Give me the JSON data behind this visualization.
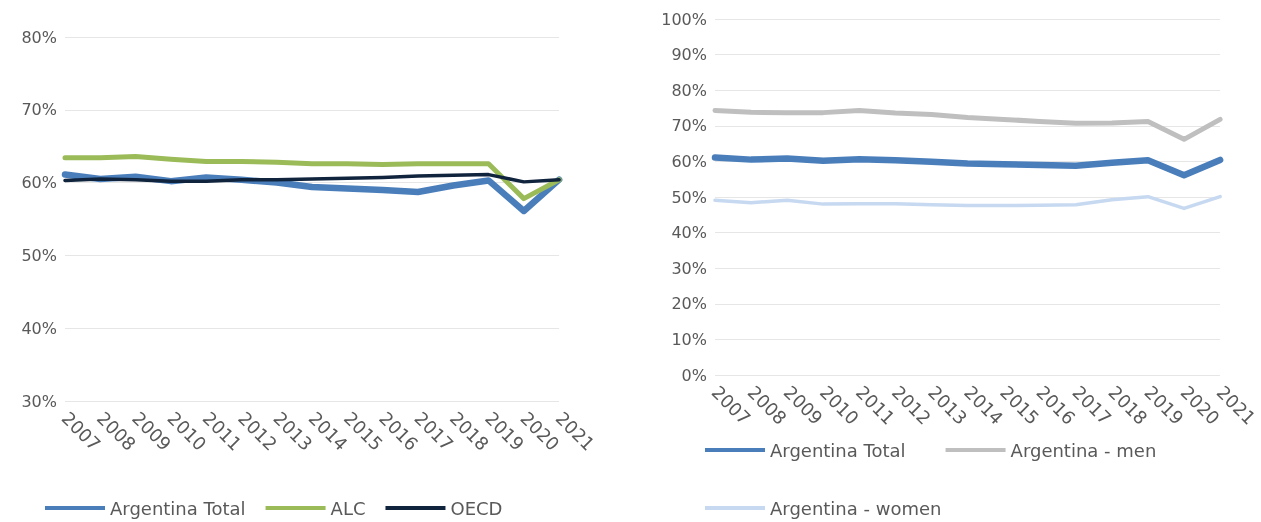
{
  "chart_data": [
    {
      "type": "line",
      "categories": [
        "2007",
        "2008",
        "2009",
        "2010",
        "2011",
        "2012",
        "2013",
        "2014",
        "2015",
        "2016",
        "2017",
        "2018",
        "2019",
        "2020",
        "2021"
      ],
      "ylim": [
        30,
        80
      ],
      "yticks": [
        {
          "value": 30,
          "label": "30%"
        },
        {
          "value": 40,
          "label": "40%"
        },
        {
          "value": 50,
          "label": "50%"
        },
        {
          "value": 60,
          "label": "60%"
        },
        {
          "value": 70,
          "label": "70%"
        },
        {
          "value": 80,
          "label": "80%"
        }
      ],
      "grid": "y",
      "legend": "bottom",
      "marker": "none",
      "line_style": "solid",
      "series": [
        {
          "name": "Argentina Total",
          "color": "#4a7ebb",
          "values": [
            61.1,
            60.5,
            60.8,
            60.2,
            60.7,
            60.4,
            60.0,
            59.4,
            59.2,
            59.0,
            58.7,
            59.6,
            60.3,
            56.1,
            60.4
          ]
        },
        {
          "name": "ALC",
          "color": "#9bbb59",
          "values": [
            63.4,
            63.4,
            63.6,
            63.2,
            62.9,
            62.9,
            62.8,
            62.6,
            62.6,
            62.5,
            62.6,
            62.6,
            62.6,
            57.8,
            60.4
          ]
        },
        {
          "name": "OECD",
          "color": "#10243e",
          "values": [
            60.3,
            60.5,
            60.4,
            60.2,
            60.2,
            60.4,
            60.4,
            60.5,
            60.6,
            60.7,
            60.9,
            61.0,
            61.1,
            60.1,
            60.4
          ]
        }
      ]
    },
    {
      "type": "line",
      "categories": [
        "2007",
        "2008",
        "2009",
        "2010",
        "2011",
        "2012",
        "2013",
        "2014",
        "2015",
        "2016",
        "2017",
        "2018",
        "2019",
        "2020",
        "2021"
      ],
      "ylim": [
        0,
        100
      ],
      "yticks": [
        {
          "value": 0,
          "label": "0%"
        },
        {
          "value": 10,
          "label": "10%"
        },
        {
          "value": 20,
          "label": "20%"
        },
        {
          "value": 30,
          "label": "30%"
        },
        {
          "value": 40,
          "label": "40%"
        },
        {
          "value": 50,
          "label": "50%"
        },
        {
          "value": 60,
          "label": "60%"
        },
        {
          "value": 70,
          "label": "70%"
        },
        {
          "value": 80,
          "label": "80%"
        },
        {
          "value": 90,
          "label": "90%"
        },
        {
          "value": 100,
          "label": "100%"
        }
      ],
      "grid": "y",
      "legend": "bottom",
      "marker": "none",
      "line_style": "solid",
      "series": [
        {
          "name": "Argentina Total",
          "color": "#4a7ebb",
          "values": [
            61.1,
            60.5,
            60.8,
            60.2,
            60.6,
            60.3,
            59.9,
            59.4,
            59.2,
            59.0,
            58.8,
            59.6,
            60.3,
            56.1,
            60.4
          ]
        },
        {
          "name": "Argentina - men",
          "color": "#bfbfbf",
          "values": [
            74.3,
            73.8,
            73.7,
            73.7,
            74.3,
            73.6,
            73.2,
            72.3,
            71.8,
            71.2,
            70.7,
            70.8,
            71.2,
            66.2,
            71.8
          ]
        },
        {
          "name": "Argentina - women",
          "color": "#c6d9f1",
          "values": [
            49.1,
            48.4,
            49.1,
            48.0,
            48.1,
            48.1,
            47.8,
            47.6,
            47.6,
            47.7,
            47.8,
            49.2,
            50.1,
            46.8,
            50.1
          ]
        }
      ]
    }
  ]
}
